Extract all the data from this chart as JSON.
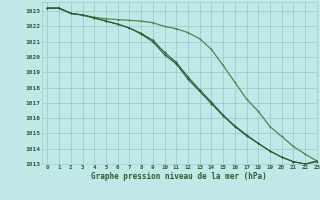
{
  "title": "Graphe pression niveau de la mer (hPa)",
  "background_color": "#c0e8e8",
  "grid_color": "#a0cccc",
  "line_color_dark": "#2d5c2d",
  "line_color_light": "#4a8a4a",
  "xlim": [
    -0.5,
    23
  ],
  "ylim": [
    1013,
    1023.6
  ],
  "yticks": [
    1013,
    1014,
    1015,
    1016,
    1017,
    1018,
    1019,
    1020,
    1021,
    1022,
    1023
  ],
  "xticks": [
    0,
    1,
    2,
    3,
    4,
    5,
    6,
    7,
    8,
    9,
    10,
    11,
    12,
    13,
    14,
    15,
    16,
    17,
    18,
    19,
    20,
    21,
    22,
    23
  ],
  "series_dark1": [
    1023.2,
    1023.2,
    1022.85,
    1022.75,
    1022.55,
    1022.35,
    1022.15,
    1021.9,
    1021.5,
    1021.0,
    1020.15,
    1019.55,
    1018.55,
    1017.75,
    1016.95,
    1016.15,
    1015.45,
    1014.85,
    1014.35,
    1013.85,
    1013.45,
    1013.15,
    1013.0,
    1013.2
  ],
  "series_dark2": [
    1023.2,
    1023.2,
    1022.85,
    1022.75,
    1022.55,
    1022.35,
    1022.15,
    1021.9,
    1021.55,
    1021.1,
    1020.3,
    1019.65,
    1018.7,
    1017.85,
    1017.05,
    1016.2,
    1015.5,
    1014.9,
    1014.35,
    1013.85,
    1013.45,
    1013.15,
    1013.0,
    1013.15
  ],
  "series_light": [
    1023.2,
    1023.2,
    1022.85,
    1022.75,
    1022.6,
    1022.5,
    1022.45,
    1022.4,
    1022.35,
    1022.25,
    1022.0,
    1021.85,
    1021.6,
    1021.2,
    1020.5,
    1019.45,
    1018.35,
    1017.25,
    1016.45,
    1015.45,
    1014.8,
    1014.15,
    1013.65,
    1013.2
  ]
}
